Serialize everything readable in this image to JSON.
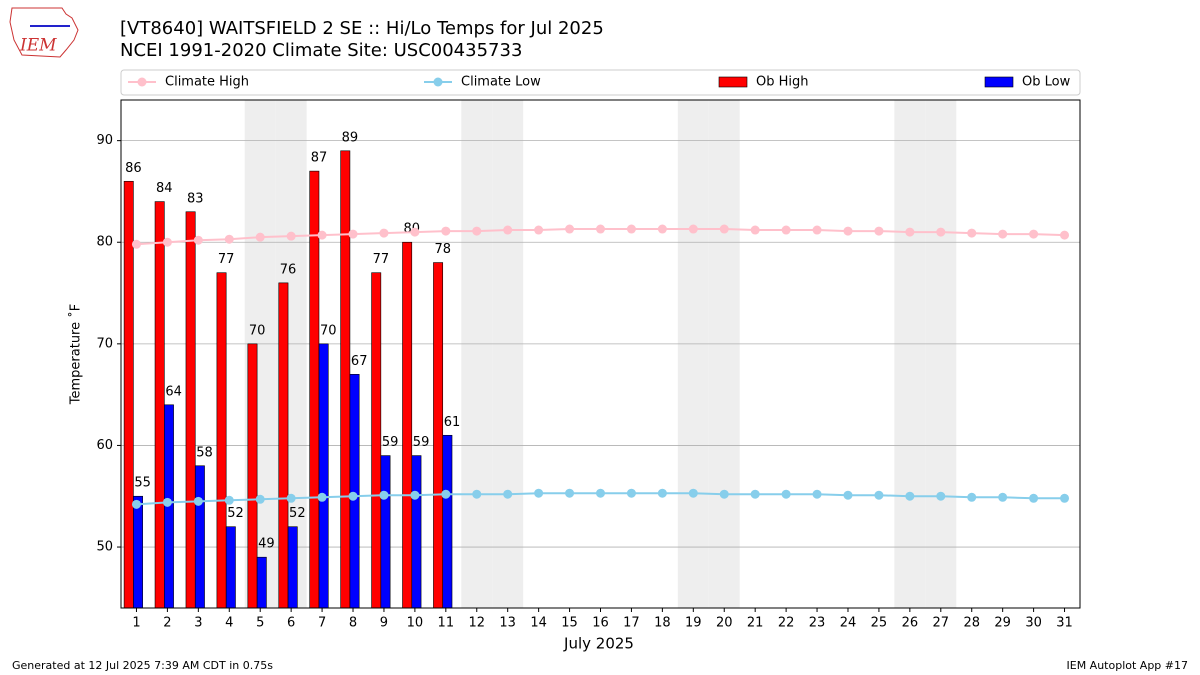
{
  "chart_data": {
    "type": "bar",
    "logo_text": "IEM",
    "title": "[VT8640] WAITSFIELD 2 SE :: Hi/Lo Temps for Jul 2025",
    "subtitle": "NCEI 1991-2020 Climate Site: USC00435733",
    "x_label": "July 2025",
    "y_label": "Temperature ˚F",
    "footer_left": "Generated at 12 Jul 2025 7:39 AM CDT in 0.75s",
    "footer_right": "IEM Autoplot App #17",
    "x": [
      1,
      2,
      3,
      4,
      5,
      6,
      7,
      8,
      9,
      10,
      11,
      12,
      13,
      14,
      15,
      16,
      17,
      18,
      19,
      20,
      21,
      22,
      23,
      24,
      25,
      26,
      27,
      28,
      29,
      30,
      31
    ],
    "xlim": [
      0.5,
      31.5
    ],
    "xticks": [
      1,
      2,
      3,
      4,
      5,
      6,
      7,
      8,
      9,
      10,
      11,
      12,
      13,
      14,
      15,
      16,
      17,
      18,
      19,
      20,
      21,
      22,
      23,
      24,
      25,
      26,
      27,
      28,
      29,
      30,
      31
    ],
    "ylim": [
      44,
      94
    ],
    "yticks": [
      50,
      60,
      70,
      80,
      90
    ],
    "grid": true,
    "legend": "top",
    "shaded_days": [
      5,
      6,
      12,
      13,
      19,
      20,
      26,
      27
    ],
    "series": [
      {
        "name": "Climate High",
        "type": "line",
        "color": "#ffc0cb",
        "values": [
          79.8,
          80.0,
          80.2,
          80.3,
          80.5,
          80.6,
          80.7,
          80.8,
          80.9,
          81.0,
          81.1,
          81.1,
          81.2,
          81.2,
          81.3,
          81.3,
          81.3,
          81.3,
          81.3,
          81.3,
          81.2,
          81.2,
          81.2,
          81.1,
          81.1,
          81.0,
          81.0,
          80.9,
          80.8,
          80.8,
          80.7
        ]
      },
      {
        "name": "Climate Low",
        "type": "line",
        "color": "#87ceeb",
        "values": [
          54.2,
          54.4,
          54.5,
          54.6,
          54.7,
          54.8,
          54.9,
          55.0,
          55.1,
          55.1,
          55.2,
          55.2,
          55.2,
          55.3,
          55.3,
          55.3,
          55.3,
          55.3,
          55.3,
          55.2,
          55.2,
          55.2,
          55.2,
          55.1,
          55.1,
          55.0,
          55.0,
          54.9,
          54.9,
          54.8,
          54.8
        ]
      },
      {
        "name": "Ob High",
        "type": "bar",
        "color": "#ff0000",
        "values": [
          86,
          84,
          83,
          77,
          70,
          76,
          87,
          89,
          77,
          80,
          78,
          null,
          null,
          null,
          null,
          null,
          null,
          null,
          null,
          null,
          null,
          null,
          null,
          null,
          null,
          null,
          null,
          null,
          null,
          null,
          null
        ]
      },
      {
        "name": "Ob Low",
        "type": "bar",
        "color": "#0000ff",
        "values": [
          55,
          64,
          58,
          52,
          49,
          52,
          70,
          67,
          59,
          59,
          61,
          null,
          null,
          null,
          null,
          null,
          null,
          null,
          null,
          null,
          null,
          null,
          null,
          null,
          null,
          null,
          null,
          null,
          null,
          null,
          null
        ]
      }
    ]
  }
}
